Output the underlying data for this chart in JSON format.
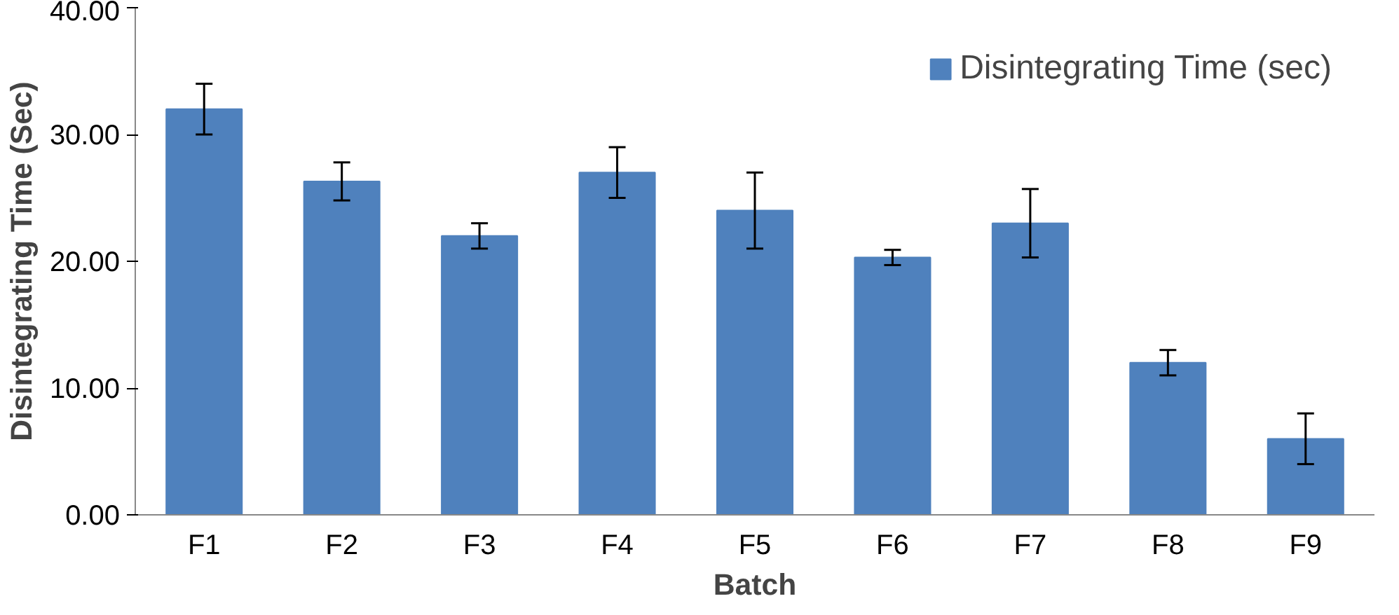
{
  "chart_data": {
    "type": "bar",
    "xlabel": "Batch",
    "ylabel": "Disintegrating Time (Sec)",
    "categories": [
      "F1",
      "F2",
      "F3",
      "F4",
      "F5",
      "F6",
      "F7",
      "F8",
      "F9"
    ],
    "series": [
      {
        "name": "Disintegrating Time (sec)",
        "color": "#4f81bd",
        "values": [
          32.0,
          26.3,
          22.0,
          27.0,
          24.0,
          20.3,
          23.0,
          12.0,
          6.0
        ],
        "errors": [
          2.0,
          1.5,
          1.0,
          2.0,
          3.0,
          0.6,
          2.7,
          1.0,
          2.0
        ]
      }
    ],
    "ylim": [
      0,
      40
    ],
    "yticks": [
      {
        "value": 0,
        "label": "0.00"
      },
      {
        "value": 10,
        "label": "10.00"
      },
      {
        "value": 20,
        "label": "20.00"
      },
      {
        "value": 30,
        "label": "30.00"
      },
      {
        "value": 40,
        "label": "40.00"
      }
    ],
    "grid": false,
    "legend": "top right"
  }
}
